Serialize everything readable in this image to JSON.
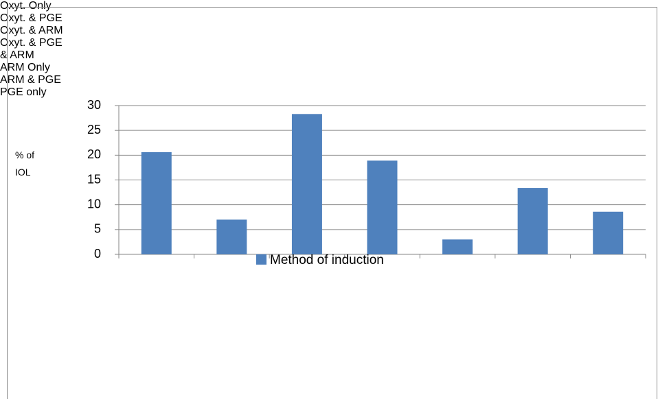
{
  "chart_data": {
    "type": "bar",
    "y_label": "% of IOL",
    "categories": [
      "Oxyt. Only",
      "Oxyt. & PGE",
      "Oxyt. & ARM",
      "Oxyt. & PGE & ARM",
      "ARM Only",
      "ARM & PGE",
      "PGE only"
    ],
    "series": [
      {
        "name": "Method of induction",
        "color": "#4f81bd",
        "values": [
          20.6,
          7,
          28.3,
          18.9,
          3,
          13.4,
          8.6
        ]
      }
    ],
    "ylim": [
      0,
      30
    ],
    "yticks": [
      0,
      5,
      10,
      15,
      20,
      25,
      30
    ],
    "grid": true,
    "legend": "bottom"
  }
}
